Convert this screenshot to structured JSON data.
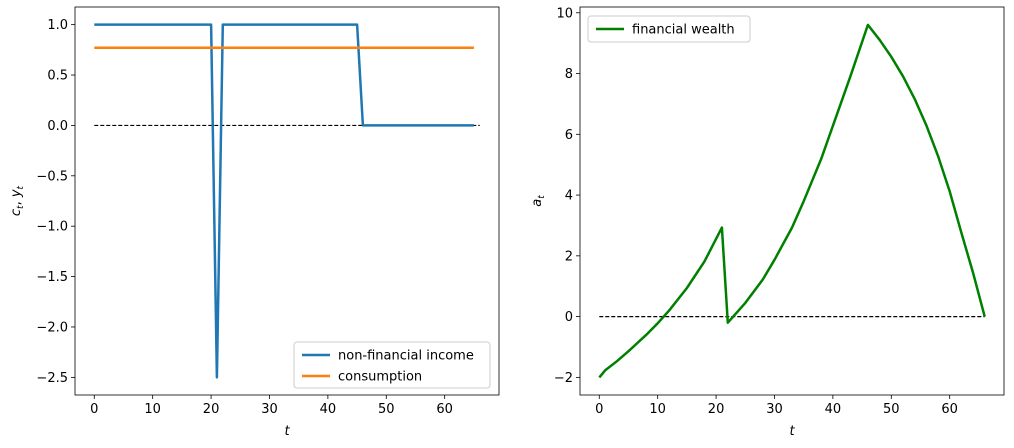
{
  "chart_data": [
    {
      "type": "line",
      "xlabel": "t",
      "ylabel_main": "c",
      "ylabel_sub1": "t",
      "ylabel_sep": ", ",
      "ylabel_main2": "y",
      "ylabel_sub2": "t",
      "xlim": [
        -3.3,
        69.3
      ],
      "ylim": [
        -2.675,
        1.175
      ],
      "xticks": [
        0,
        10,
        20,
        30,
        40,
        50,
        60
      ],
      "xtick_labels": [
        "0",
        "10",
        "20",
        "30",
        "40",
        "50",
        "60"
      ],
      "yticks": [
        1.0,
        0.5,
        0.0,
        -0.5,
        -1.0,
        -1.5,
        -2.0,
        -2.5
      ],
      "ytick_labels": [
        "1.0",
        "0.5",
        "0.0",
        "−0.5",
        "−1.0",
        "−1.5",
        "−2.0",
        "−2.5"
      ],
      "legend_position": "lower-right",
      "series": [
        {
          "name": "non-financial income",
          "color": "#1f77b4",
          "x": [
            0,
            20,
            21,
            22,
            45,
            46,
            65
          ],
          "y": [
            1.0,
            1.0,
            -2.5,
            1.0,
            1.0,
            0.0,
            0.0
          ]
        },
        {
          "name": "consumption",
          "color": "#ff7f0e",
          "x": [
            0,
            65
          ],
          "y": [
            0.77,
            0.77
          ]
        }
      ],
      "reference_line": {
        "x": [
          0,
          66
        ],
        "y": [
          0,
          0
        ],
        "color": "#000000",
        "style": "dashed"
      }
    },
    {
      "type": "line",
      "xlabel": "t",
      "ylabel_main": "a",
      "ylabel_sub1": "t",
      "xlim": [
        -3.3,
        69.3
      ],
      "ylim": [
        -2.58,
        10.19
      ],
      "xticks": [
        0,
        10,
        20,
        30,
        40,
        50,
        60
      ],
      "xtick_labels": [
        "0",
        "10",
        "20",
        "30",
        "40",
        "50",
        "60"
      ],
      "yticks": [
        10,
        8,
        6,
        4,
        2,
        0,
        -2
      ],
      "ytick_labels": [
        "10",
        "8",
        "6",
        "4",
        "2",
        "0",
        "−2"
      ],
      "legend_position": "upper-left",
      "series": [
        {
          "name": "financial wealth",
          "color": "#008000",
          "x": [
            0,
            1,
            3,
            5,
            8,
            10,
            12,
            15,
            18,
            21,
            22,
            25,
            28,
            30,
            33,
            35,
            38,
            40,
            43,
            46,
            48,
            50,
            52,
            54,
            56,
            58,
            60,
            62,
            64,
            66
          ],
          "y": [
            -2.0,
            -1.77,
            -1.47,
            -1.14,
            -0.61,
            -0.22,
            0.21,
            0.94,
            1.81,
            2.93,
            -0.2,
            0.45,
            1.22,
            1.87,
            2.93,
            3.8,
            5.19,
            6.28,
            7.91,
            9.6,
            9.11,
            8.55,
            7.91,
            7.17,
            6.3,
            5.29,
            4.12,
            2.76,
            1.45,
            0.0
          ]
        }
      ],
      "reference_line": {
        "x": [
          0,
          66
        ],
        "y": [
          0,
          0
        ],
        "color": "#000000",
        "style": "dashed"
      }
    }
  ]
}
